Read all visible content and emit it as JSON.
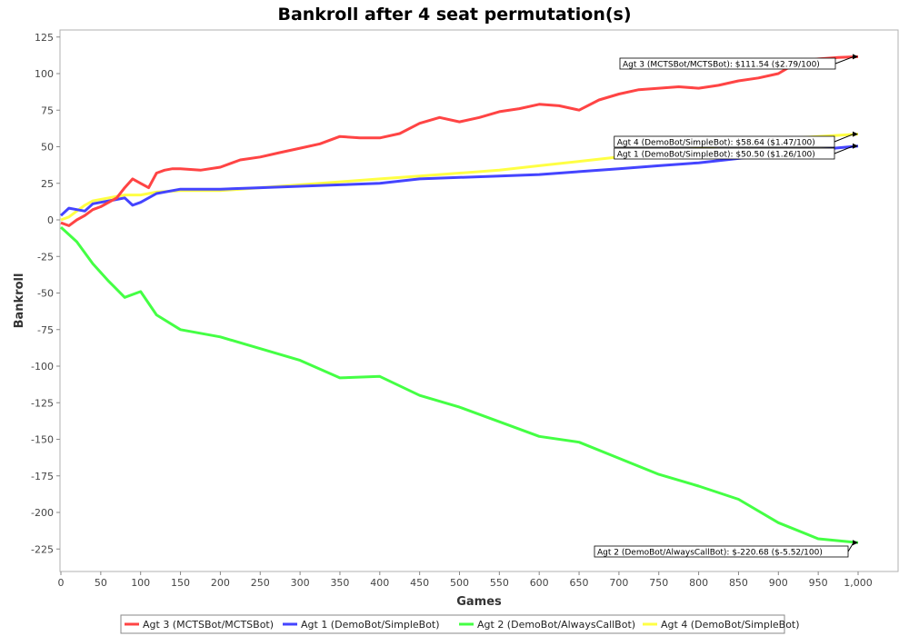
{
  "chart_data": {
    "type": "line",
    "title": "Bankroll after 4 seat permutation(s)",
    "xlabel": "Games",
    "ylabel": "Bankroll",
    "xlim": [
      0,
      1000
    ],
    "ylim": [
      -240,
      130
    ],
    "x_ticks": [
      0,
      50,
      100,
      150,
      200,
      250,
      300,
      350,
      400,
      450,
      500,
      550,
      600,
      650,
      700,
      750,
      800,
      850,
      900,
      950,
      1000
    ],
    "x_tick_labels": [
      "0",
      "50",
      "100",
      "150",
      "200",
      "250",
      "300",
      "350",
      "400",
      "450",
      "500",
      "550",
      "600",
      "650",
      "700",
      "750",
      "800",
      "850",
      "900",
      "950",
      "1,000"
    ],
    "y_ticks": [
      125,
      100,
      75,
      50,
      25,
      0,
      -25,
      -50,
      -75,
      -100,
      -125,
      -150,
      -175,
      -200,
      -225
    ],
    "y_tick_labels": [
      "125",
      "100",
      "75",
      "50",
      "25",
      "0",
      "-25",
      "-50",
      "-75",
      "-100",
      "-125",
      "-150",
      "-175",
      "-200",
      "-225"
    ],
    "grid": false,
    "legend_position": "bottom",
    "series": [
      {
        "name": "Agt 3 (MCTSBot/MCTSBot)",
        "color": "#ff4444",
        "x": [
          0,
          10,
          20,
          30,
          40,
          50,
          60,
          70,
          80,
          90,
          100,
          110,
          120,
          130,
          140,
          150,
          175,
          200,
          225,
          250,
          275,
          300,
          325,
          350,
          375,
          400,
          425,
          450,
          475,
          500,
          525,
          550,
          575,
          600,
          625,
          650,
          675,
          700,
          725,
          750,
          775,
          800,
          825,
          850,
          875,
          900,
          925,
          950,
          975,
          1000
        ],
        "values": [
          -2,
          -4,
          0,
          3,
          7,
          9,
          12,
          15,
          22,
          28,
          25,
          22,
          32,
          34,
          35,
          35,
          34,
          36,
          41,
          43,
          46,
          49,
          52,
          57,
          56,
          56,
          59,
          66,
          70,
          67,
          70,
          74,
          76,
          79,
          78,
          75,
          82,
          86,
          89,
          90,
          91,
          90,
          92,
          95,
          97,
          100,
          108,
          110,
          111,
          111.54
        ],
        "end_label": "Agt 3 (MCTSBot/MCTSBot): $111.54 ($2.79/100)"
      },
      {
        "name": "Agt 1 (DemoBot/SimpleBot)",
        "color": "#4444ff",
        "x": [
          0,
          10,
          20,
          30,
          40,
          50,
          60,
          70,
          80,
          90,
          100,
          120,
          150,
          200,
          250,
          300,
          350,
          400,
          450,
          500,
          550,
          600,
          650,
          700,
          750,
          800,
          850,
          900,
          950,
          1000
        ],
        "values": [
          3,
          8,
          7,
          6,
          11,
          12,
          13,
          14,
          15,
          10,
          12,
          18,
          21,
          21,
          22,
          23,
          24,
          25,
          28,
          29,
          30,
          31,
          33,
          35,
          37,
          39,
          42,
          45,
          48,
          50.5
        ],
        "end_label": "Agt 1 (DemoBot/SimpleBot): $50.50 ($1.26/100)"
      },
      {
        "name": "Agt 2 (DemoBot/AlwaysCallBot)",
        "color": "#44ff44",
        "x": [
          0,
          20,
          40,
          60,
          80,
          100,
          120,
          150,
          200,
          250,
          300,
          350,
          400,
          450,
          500,
          550,
          600,
          650,
          700,
          750,
          800,
          850,
          900,
          950,
          1000
        ],
        "values": [
          -5,
          -15,
          -30,
          -42,
          -53,
          -49,
          -65,
          -75,
          -80,
          -88,
          -96,
          -108,
          -107,
          -120,
          -128,
          -138,
          -148,
          -152,
          -163,
          -174,
          -182,
          -191,
          -207,
          -218,
          -220.68
        ],
        "end_label": "Agt 2 (DemoBot/AlwaysCallBot): $-220.68 ($-5.52/100)"
      },
      {
        "name": "Agt 4 (DemoBot/SimpleBot)",
        "color": "#ffff44",
        "x": [
          0,
          10,
          20,
          30,
          40,
          50,
          60,
          70,
          80,
          90,
          100,
          120,
          150,
          200,
          250,
          300,
          350,
          400,
          450,
          500,
          550,
          600,
          650,
          700,
          750,
          800,
          850,
          900,
          950,
          1000
        ],
        "values": [
          0,
          2,
          6,
          10,
          13,
          14,
          15,
          16,
          17,
          17,
          17,
          19,
          20,
          20,
          22,
          24,
          26,
          28,
          30,
          32,
          34,
          37,
          40,
          43,
          46,
          49,
          52,
          55,
          57,
          58.64
        ],
        "end_label": "Agt 4 (DemoBot/SimpleBot): $58.64 ($1.47/100)"
      }
    ]
  }
}
